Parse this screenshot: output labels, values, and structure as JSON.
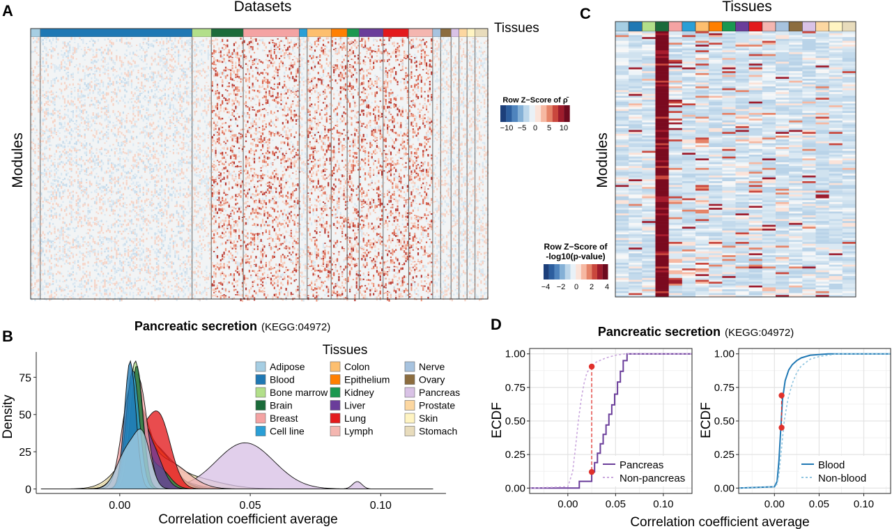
{
  "panel_labels": {
    "a": "A",
    "b": "B",
    "c": "C",
    "d": "D"
  },
  "colors": {
    "tissues": {
      "Adipose": "#a6cee3",
      "Blood": "#1f78b4",
      "Bone marrow": "#b2df8a",
      "Brain": "#1b6b3a",
      "Breast": "#f4a3a3",
      "Cell line": "#2a9fd6",
      "Colon": "#fdbf6f",
      "Epithelium": "#ff7f00",
      "Kidney": "#1a9850",
      "Liver": "#6a3d9a",
      "Lung": "#e31a1c",
      "Lymph": "#f4b6b0",
      "Nerve": "#a7c3df",
      "Ovary": "#8c6d3f",
      "Pancreas": "#d9c2e6",
      "Prostate": "#fcd7a1",
      "Skin": "#fff4c2",
      "Stomach": "#e8dcbc"
    },
    "pancreas_line": "#6a3d9a",
    "nonpancreas_line": "#c9a6dd",
    "blood_line": "#1f78b4",
    "nonblood_line": "#8ec5e0",
    "marker": "#e0302b"
  },
  "panel_a": {
    "title": "Datasets",
    "tissue_label": "Tissues",
    "ylabel": "Modules",
    "legend_title": "Row Z−Score of ρ̄",
    "legend_ticks": [
      "−10",
      "−5",
      "0",
      "5",
      "10"
    ],
    "bar_tissues": [
      "Adipose",
      "Blood",
      "Bone marrow",
      "Brain",
      "Breast",
      "Cell line",
      "Colon",
      "Epithelium",
      "Kidney",
      "Liver",
      "Lung",
      "Lymph",
      "Nerve",
      "Ovary",
      "Pancreas",
      "Prostate",
      "Skin",
      "Stomach"
    ],
    "bar_weights": [
      1.2,
      19,
      2.4,
      4,
      7,
      1,
      3,
      2,
      1.5,
      3,
      3.2,
      3,
      1,
      1.3,
      1,
      1,
      1,
      1.6
    ]
  },
  "panel_c": {
    "title": "Tissues",
    "ylabel": "Modules",
    "legend_title_line1": "Row Z−Score of",
    "legend_title_line2": "-log10(p-value)",
    "legend_ticks": [
      "−4",
      "−2",
      "0",
      "2",
      "4"
    ],
    "bar_tissues": [
      "Adipose",
      "Blood",
      "Bone marrow",
      "Brain",
      "Breast",
      "Cell line",
      "Colon",
      "Epithelium",
      "Kidney",
      "Liver",
      "Lung",
      "Lymph",
      "Nerve",
      "Ovary",
      "Pancreas",
      "Prostate",
      "Skin",
      "Stomach"
    ]
  },
  "chart_data": [
    {
      "panel": "B",
      "type": "area",
      "title": "Pancreatic secretion",
      "subtitle": "(KEGG:04972)",
      "xlabel": "Correlation coefficient average",
      "ylabel": "Density",
      "xlim": [
        -0.032,
        0.125
      ],
      "ylim": [
        -3,
        92
      ],
      "xticks": [
        0.0,
        0.05,
        0.1
      ],
      "xtick_labels": [
        "0.00",
        "0.05",
        "0.10"
      ],
      "yticks": [
        0,
        25,
        50,
        75
      ],
      "ytick_labels": [
        "0",
        "25",
        "50",
        "75"
      ],
      "legend_title": "Tissues",
      "legend_position": "top-right",
      "legend": [
        "Adipose",
        "Blood",
        "Bone marrow",
        "Brain",
        "Breast",
        "Cell line",
        "Colon",
        "Epithelium",
        "Kidney",
        "Liver",
        "Lung",
        "Lymph",
        "Nerve",
        "Ovary",
        "Pancreas",
        "Prostate",
        "Skin",
        "Stomach"
      ],
      "series": [
        {
          "name": "Stomach",
          "components": [
            [
              0.008,
              0.0065,
              34
            ],
            [
              0.022,
              0.012,
              10
            ]
          ]
        },
        {
          "name": "Skin",
          "components": [
            [
              0.009,
              0.008,
              30
            ],
            [
              0.025,
              0.012,
              8
            ]
          ]
        },
        {
          "name": "Pancreas",
          "components": [
            [
              0.008,
              0.006,
              28
            ],
            [
              0.048,
              0.011,
              31
            ],
            [
              0.091,
              0.0018,
              5
            ]
          ]
        },
        {
          "name": "Nerve",
          "components": [
            [
              0.005,
              0.003,
              58
            ],
            [
              0.015,
              0.009,
              10
            ]
          ]
        },
        {
          "name": "Ovary",
          "components": [
            [
              0.006,
              0.0035,
              55
            ],
            [
              0.014,
              0.006,
              14
            ]
          ]
        },
        {
          "name": "Prostate",
          "components": [
            [
              0.006,
              0.004,
              60
            ],
            [
              0.016,
              0.007,
              12
            ]
          ]
        },
        {
          "name": "Colon",
          "components": [
            [
              0.007,
              0.004,
              50
            ],
            [
              0.016,
              0.006,
              18
            ]
          ]
        },
        {
          "name": "Epithelium",
          "components": [
            [
              0.007,
              0.0045,
              45
            ],
            [
              0.017,
              0.005,
              20
            ]
          ]
        },
        {
          "name": "Lymph",
          "components": [
            [
              0.006,
              0.005,
              40
            ],
            [
              0.018,
              0.008,
              18
            ]
          ]
        },
        {
          "name": "Lung",
          "components": [
            [
              0.007,
              0.004,
              26
            ],
            [
              0.015,
              0.0045,
              48
            ]
          ]
        },
        {
          "name": "Kidney",
          "components": [
            [
              0.007,
              0.003,
              52
            ],
            [
              0.015,
              0.004,
              14
            ]
          ]
        },
        {
          "name": "Liver",
          "components": [
            [
              0.006,
              0.003,
              50
            ],
            [
              0.012,
              0.004,
              28
            ]
          ]
        },
        {
          "name": "Breast",
          "components": [
            [
              0.003,
              0.003,
              48
            ],
            [
              0.008,
              0.003,
              60
            ]
          ]
        },
        {
          "name": "Bone marrow",
          "components": [
            [
              0.006,
              0.0026,
              86
            ]
          ]
        },
        {
          "name": "Brain",
          "components": [
            [
              0.0065,
              0.0024,
              83
            ]
          ]
        },
        {
          "name": "Cell line",
          "components": [
            [
              0.005,
              0.0025,
              80
            ]
          ]
        },
        {
          "name": "Blood",
          "components": [
            [
              0.004,
              0.0022,
              86
            ]
          ]
        },
        {
          "name": "Adipose",
          "components": [
            [
              0.003,
              0.004,
              26
            ],
            [
              0.009,
              0.003,
              30
            ]
          ]
        }
      ]
    },
    {
      "panel": "D-left",
      "type": "line",
      "title": "Pancreatic secretion",
      "subtitle": "(KEGG:04972)",
      "xlabel": "Correlation coefficient average",
      "ylabel": "ECDF",
      "xlim": [
        -0.04,
        0.13
      ],
      "ylim": [
        -0.04,
        1.04
      ],
      "xticks": [
        0.0,
        0.05,
        0.1
      ],
      "xtick_labels": [
        "0.00",
        "0.05",
        "0.10"
      ],
      "yticks": [
        0,
        0.25,
        0.5,
        0.75,
        1.0
      ],
      "ytick_labels": [
        "0.00",
        "0.25",
        "0.50",
        "0.75",
        "1.00"
      ],
      "legend_position": "bottom-right",
      "series": [
        {
          "name": "Pancreas",
          "style": "step",
          "x": [
            -0.04,
            0.012,
            0.025,
            0.028,
            0.031,
            0.034,
            0.037,
            0.04,
            0.043,
            0.046,
            0.049,
            0.052,
            0.055,
            0.058,
            0.062,
            0.13
          ],
          "y": [
            0,
            0.05,
            0.12,
            0.19,
            0.26,
            0.33,
            0.4,
            0.47,
            0.55,
            0.62,
            0.7,
            0.79,
            0.87,
            0.95,
            1.0,
            1.0
          ]
        },
        {
          "name": "Non-pancreas",
          "style": "dashed",
          "x": [
            -0.04,
            0.0,
            0.005,
            0.008,
            0.011,
            0.014,
            0.017,
            0.02,
            0.024,
            0.03,
            0.04,
            0.05,
            0.06,
            0.13
          ],
          "y": [
            0,
            0.01,
            0.12,
            0.3,
            0.5,
            0.66,
            0.78,
            0.86,
            0.9,
            0.94,
            0.97,
            0.99,
            1.0,
            1.0
          ]
        }
      ],
      "markers": [
        [
          0.025,
          0.905
        ],
        [
          0.025,
          0.12
        ]
      ]
    },
    {
      "panel": "D-right",
      "type": "line",
      "xlabel": "Correlation coefficient average",
      "ylabel": "ECDF",
      "xlim": [
        -0.04,
        0.13
      ],
      "ylim": [
        -0.04,
        1.04
      ],
      "xticks": [
        0.0,
        0.05,
        0.1
      ],
      "xtick_labels": [
        "0.00",
        "0.05",
        "0.10"
      ],
      "yticks": [
        0,
        0.25,
        0.5,
        0.75,
        1.0
      ],
      "ytick_labels": [
        "0.00",
        "0.25",
        "0.50",
        "0.75",
        "1.00"
      ],
      "legend_position": "bottom-right",
      "series": [
        {
          "name": "Blood",
          "style": "solid",
          "x": [
            -0.04,
            0.0,
            0.003,
            0.005,
            0.007,
            0.009,
            0.012,
            0.016,
            0.02,
            0.025,
            0.03,
            0.04,
            0.06,
            0.13
          ],
          "y": [
            0,
            0.01,
            0.05,
            0.2,
            0.43,
            0.66,
            0.8,
            0.88,
            0.92,
            0.95,
            0.97,
            0.99,
            1.0,
            1.0
          ]
        },
        {
          "name": "Non-blood",
          "style": "dashed",
          "x": [
            -0.04,
            0.0,
            0.003,
            0.005,
            0.008,
            0.011,
            0.015,
            0.02,
            0.025,
            0.03,
            0.04,
            0.05,
            0.07,
            0.13
          ],
          "y": [
            0,
            0.01,
            0.03,
            0.1,
            0.3,
            0.5,
            0.66,
            0.78,
            0.86,
            0.91,
            0.96,
            0.98,
            1.0,
            1.0
          ]
        }
      ],
      "markers": [
        [
          0.008,
          0.69
        ],
        [
          0.008,
          0.45
        ]
      ]
    }
  ]
}
